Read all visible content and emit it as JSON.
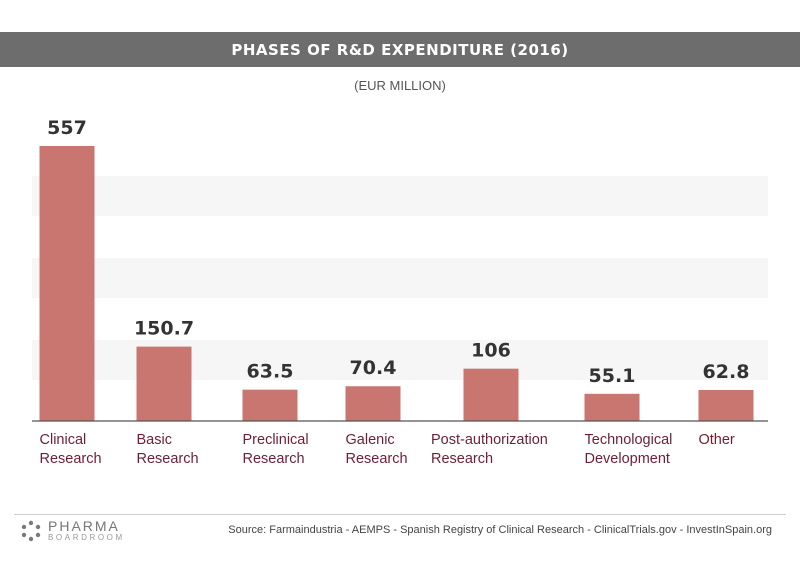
{
  "header": {
    "title": "PHASES OF R&D EXPENDITURE (2016)",
    "subtitle": "(EUR MILLION)"
  },
  "chart_data": {
    "type": "bar",
    "title": "PHASES OF R&D EXPENDITURE (2016)",
    "subtitle": "(EUR MILLION)",
    "categories": [
      [
        "Clinical",
        "Research"
      ],
      [
        "Basic",
        "Research"
      ],
      [
        "Preclinical",
        "Research"
      ],
      [
        "Galenic",
        "Research"
      ],
      [
        "Post-authorization",
        "Research"
      ],
      [
        "Technological",
        "Development"
      ],
      [
        "Other"
      ]
    ],
    "values": [
      557,
      150.7,
      63.5,
      70.4,
      106,
      55.1,
      62.8
    ],
    "value_labels": [
      "557",
      "150.7",
      "63.5",
      "70.4",
      "106",
      "55.1",
      "62.8"
    ],
    "ylim": [
      0,
      600
    ],
    "grid": false,
    "colors": {
      "bar": "#c97670",
      "category_text": "#6e1f33",
      "value_text": "#333333"
    }
  },
  "footer": {
    "logo_main": "PHARMA",
    "logo_sub": "BOARDROOM",
    "source": "Source:  Farmaindustria - AEMPS - Spanish Registry of Clinical Research - ClinicalTrials.gov - InvestInSpain.org"
  }
}
